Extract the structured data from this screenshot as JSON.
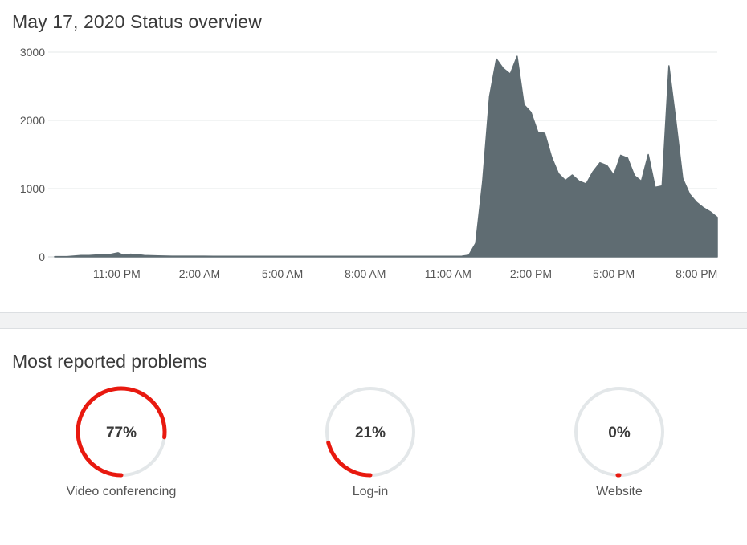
{
  "header": {
    "title": "May 17, 2020 Status overview"
  },
  "chart_data": {
    "type": "area",
    "title": "May 17, 2020 Status overview",
    "xlabel": "",
    "ylabel": "",
    "y_ticks": [
      0,
      1000,
      2000,
      3000
    ],
    "ylim": [
      0,
      3000
    ],
    "x_tick_labels": [
      "11:00 PM",
      "2:00 AM",
      "5:00 AM",
      "8:00 AM",
      "11:00 AM",
      "2:00 PM",
      "5:00 PM",
      "8:00 PM"
    ],
    "x_tick_hours": [
      -1,
      2,
      5,
      8,
      11,
      14,
      17,
      20
    ],
    "xlim_hours": [
      -3.25,
      20.75
    ],
    "grid": true,
    "color": "#5f6c72",
    "x_hours": [
      -3.25,
      -2.8,
      -2.3,
      -2,
      -1.6,
      -1.2,
      -0.95,
      -0.75,
      -0.5,
      -0.2,
      0,
      0.5,
      1,
      1.5,
      2,
      2.5,
      3,
      4,
      5,
      6,
      7,
      8,
      9,
      10,
      10.5,
      11,
      11.5,
      11.75,
      12.0,
      12.25,
      12.5,
      12.75,
      13.0,
      13.25,
      13.5,
      13.75,
      14.0,
      14.25,
      14.5,
      14.75,
      15.0,
      15.25,
      15.5,
      15.75,
      16.0,
      16.25,
      16.5,
      16.75,
      17.0,
      17.25,
      17.5,
      17.75,
      18.0,
      18.25,
      18.5,
      18.75,
      19.0,
      19.25,
      19.5,
      19.75,
      20.0,
      20.25,
      20.5,
      20.75
    ],
    "values": [
      5,
      5,
      20,
      20,
      30,
      40,
      60,
      25,
      40,
      30,
      20,
      15,
      10,
      10,
      10,
      8,
      8,
      8,
      8,
      8,
      8,
      8,
      8,
      8,
      8,
      8,
      10,
      25,
      200,
      1100,
      2350,
      2900,
      2760,
      2680,
      2940,
      2230,
      2120,
      1830,
      1810,
      1460,
      1220,
      1120,
      1200,
      1110,
      1070,
      1250,
      1380,
      1340,
      1200,
      1490,
      1450,
      1190,
      1110,
      1500,
      1020,
      1040,
      2800,
      2000,
      1150,
      920,
      800,
      720,
      660,
      580
    ]
  },
  "problems": {
    "title": "Most reported problems",
    "items": [
      {
        "label": "Video conferencing",
        "percent_text": "77%",
        "value": 77
      },
      {
        "label": "Log-in",
        "percent_text": "21%",
        "value": 21
      },
      {
        "label": "Website",
        "percent_text": "0%",
        "value": 0
      }
    ],
    "accent_color": "#e8190f",
    "track_color": "#e3e7e9"
  }
}
